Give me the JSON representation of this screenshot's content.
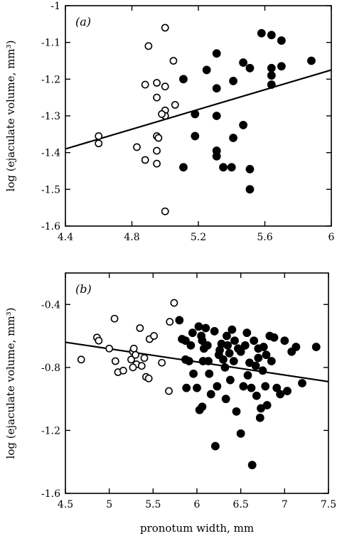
{
  "chart_data": [
    {
      "type": "scatter",
      "panel_label": "(a)",
      "xlabel": "",
      "ylabel": "log (ejaculate volume, mm³)",
      "xlim": [
        4.4,
        6.0
      ],
      "ylim": [
        -1.6,
        -1.0
      ],
      "x_ticks": [
        4.4,
        4.8,
        5.2,
        5.6,
        6.0
      ],
      "x_tick_labels": [
        "4.4",
        "4.8",
        "5.2",
        "5.6",
        "6"
      ],
      "y_ticks": [
        -1.6,
        -1.5,
        -1.4,
        -1.3,
        -1.2,
        -1.1,
        -1.0
      ],
      "y_tick_labels": [
        "-1.6",
        "-1.5",
        "-1.4",
        "-1.3",
        "-1.2",
        "-1.1",
        "-1"
      ],
      "grid": false,
      "series": [
        {
          "marker": "open-circle",
          "points": [
            [
              4.6,
              -1.355
            ],
            [
              4.6,
              -1.375
            ],
            [
              4.83,
              -1.385
            ],
            [
              4.88,
              -1.42
            ],
            [
              4.88,
              -1.215
            ],
            [
              4.9,
              -1.11
            ],
            [
              4.95,
              -1.21
            ],
            [
              4.95,
              -1.25
            ],
            [
              4.95,
              -1.355
            ],
            [
              4.96,
              -1.36
            ],
            [
              4.95,
              -1.395
            ],
            [
              4.95,
              -1.43
            ],
            [
              5.0,
              -1.06
            ],
            [
              5.0,
              -1.22
            ],
            [
              5.0,
              -1.285
            ],
            [
              5.0,
              -1.3
            ],
            [
              5.05,
              -1.15
            ],
            [
              5.06,
              -1.27
            ],
            [
              5.0,
              -1.56
            ],
            [
              4.98,
              -1.295
            ]
          ]
        },
        {
          "marker": "filled-circle",
          "points": [
            [
              5.11,
              -1.2
            ],
            [
              5.11,
              -1.44
            ],
            [
              5.18,
              -1.295
            ],
            [
              5.18,
              -1.355
            ],
            [
              5.25,
              -1.175
            ],
            [
              5.31,
              -1.13
            ],
            [
              5.31,
              -1.225
            ],
            [
              5.31,
              -1.3
            ],
            [
              5.31,
              -1.395
            ],
            [
              5.31,
              -1.41
            ],
            [
              5.35,
              -1.44
            ],
            [
              5.4,
              -1.44
            ],
            [
              5.41,
              -1.205
            ],
            [
              5.41,
              -1.36
            ],
            [
              5.47,
              -1.155
            ],
            [
              5.47,
              -1.325
            ],
            [
              5.51,
              -1.17
            ],
            [
              5.51,
              -1.445
            ],
            [
              5.51,
              -1.5
            ],
            [
              5.58,
              -1.075
            ],
            [
              5.64,
              -1.08
            ],
            [
              5.64,
              -1.17
            ],
            [
              5.64,
              -1.19
            ],
            [
              5.64,
              -1.215
            ],
            [
              5.7,
              -1.095
            ],
            [
              5.7,
              -1.165
            ],
            [
              5.88,
              -1.15
            ]
          ]
        }
      ],
      "fit_line": {
        "x": [
          4.4,
          6.0
        ],
        "y": [
          -1.39,
          -1.175
        ]
      }
    },
    {
      "type": "scatter",
      "panel_label": "(b)",
      "xlabel": "pronotum width, mm",
      "ylabel": "log (ejaculate volume, mm³)",
      "xlim": [
        4.5,
        7.5
      ],
      "ylim": [
        -1.6,
        -0.2
      ],
      "x_ticks": [
        4.5,
        5.0,
        5.5,
        6.0,
        6.5,
        7.0,
        7.5
      ],
      "x_tick_labels": [
        "4.5",
        "5",
        "5.5",
        "6",
        "6.5",
        "7",
        "7.5"
      ],
      "y_ticks": [
        -1.6,
        -1.2,
        -0.8,
        -0.4
      ],
      "y_tick_labels": [
        "-1.6",
        "-1.2",
        "-0.8",
        "-0.4"
      ],
      "grid": false,
      "series": [
        {
          "marker": "open-circle",
          "points": [
            [
              4.68,
              -0.75
            ],
            [
              4.86,
              -0.61
            ],
            [
              4.88,
              -0.63
            ],
            [
              5.0,
              -0.68
            ],
            [
              5.06,
              -0.49
            ],
            [
              5.07,
              -0.76
            ],
            [
              5.1,
              -0.83
            ],
            [
              5.16,
              -0.82
            ],
            [
              5.27,
              -0.7
            ],
            [
              5.28,
              -0.68
            ],
            [
              5.3,
              -0.72
            ],
            [
              5.31,
              -0.78
            ],
            [
              5.35,
              -0.55
            ],
            [
              5.37,
              -0.79
            ],
            [
              5.4,
              -0.74
            ],
            [
              5.42,
              -0.86
            ],
            [
              5.45,
              -0.87
            ],
            [
              5.46,
              -0.62
            ],
            [
              5.51,
              -0.6
            ],
            [
              5.6,
              -0.77
            ],
            [
              5.68,
              -0.95
            ],
            [
              5.69,
              -0.51
            ],
            [
              5.74,
              -0.39
            ],
            [
              5.27,
              -0.8
            ],
            [
              5.25,
              -0.75
            ]
          ]
        },
        {
          "marker": "filled-circle",
          "points": [
            [
              5.8,
              -0.5
            ],
            [
              5.83,
              -0.62
            ],
            [
              5.87,
              -0.63
            ],
            [
              5.87,
              -0.75
            ],
            [
              5.88,
              -0.93
            ],
            [
              5.91,
              -0.76
            ],
            [
              5.93,
              -0.66
            ],
            [
              5.95,
              -0.58
            ],
            [
              5.96,
              -0.84
            ],
            [
              6.0,
              -0.93
            ],
            [
              6.02,
              -0.54
            ],
            [
              6.03,
              -1.07
            ],
            [
              6.05,
              -0.6
            ],
            [
              6.06,
              -0.63
            ],
            [
              6.06,
              -1.05
            ],
            [
              6.07,
              -0.76
            ],
            [
              6.08,
              -0.68
            ],
            [
              6.1,
              -0.55
            ],
            [
              6.12,
              -0.66
            ],
            [
              6.13,
              -0.76
            ],
            [
              6.14,
              -0.84
            ],
            [
              6.16,
              -0.97
            ],
            [
              6.2,
              -0.57
            ],
            [
              6.21,
              -1.3
            ],
            [
              6.23,
              -0.92
            ],
            [
              6.25,
              -0.72
            ],
            [
              6.26,
              -0.69
            ],
            [
              6.28,
              -0.65
            ],
            [
              6.3,
              -0.75
            ],
            [
              6.32,
              -0.8
            ],
            [
              6.33,
              -1.0
            ],
            [
              6.34,
              -0.6
            ],
            [
              6.35,
              -0.66
            ],
            [
              6.37,
              -0.71
            ],
            [
              6.38,
              -0.88
            ],
            [
              6.4,
              -0.56
            ],
            [
              6.42,
              -0.76
            ],
            [
              6.43,
              -0.63
            ],
            [
              6.45,
              -1.08
            ],
            [
              6.47,
              -0.68
            ],
            [
              6.5,
              -0.7
            ],
            [
              6.5,
              -1.22
            ],
            [
              6.53,
              -0.92
            ],
            [
              6.55,
              -0.66
            ],
            [
              6.57,
              -0.58
            ],
            [
              6.58,
              -0.85
            ],
            [
              6.6,
              -0.77
            ],
            [
              6.62,
              -0.93
            ],
            [
              6.63,
              -1.42
            ],
            [
              6.65,
              -0.63
            ],
            [
              6.67,
              -0.79
            ],
            [
              6.68,
              -0.98
            ],
            [
              6.7,
              -0.68
            ],
            [
              6.7,
              -0.74
            ],
            [
              6.72,
              -1.12
            ],
            [
              6.73,
              -1.06
            ],
            [
              6.75,
              -0.82
            ],
            [
              6.76,
              -0.67
            ],
            [
              6.78,
              -0.92
            ],
            [
              6.79,
              -0.72
            ],
            [
              6.8,
              -1.04
            ],
            [
              6.83,
              -0.6
            ],
            [
              6.85,
              -0.76
            ],
            [
              6.88,
              -0.61
            ],
            [
              6.91,
              -0.93
            ],
            [
              6.95,
              -0.97
            ],
            [
              7.0,
              -0.63
            ],
            [
              7.03,
              -0.95
            ],
            [
              7.08,
              -0.7
            ],
            [
              7.13,
              -0.67
            ],
            [
              7.2,
              -0.9
            ],
            [
              7.36,
              -0.67
            ]
          ]
        }
      ],
      "fit_line": {
        "x": [
          4.5,
          7.5
        ],
        "y": [
          -0.64,
          -0.89
        ]
      }
    }
  ]
}
